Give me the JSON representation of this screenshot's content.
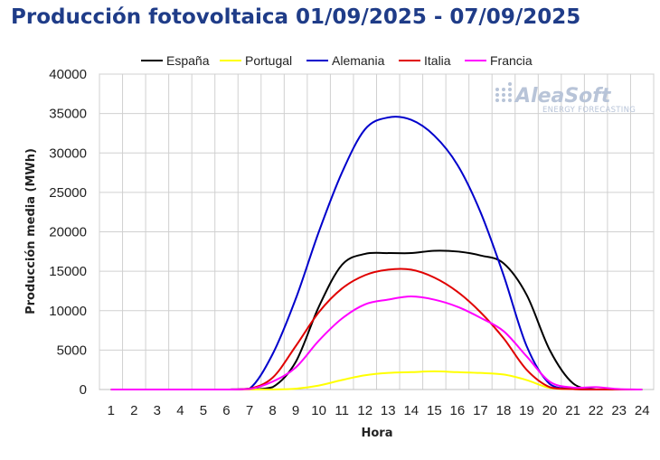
{
  "chart_data": {
    "type": "line",
    "title": "Producción fotovoltaica 01/09/2025 - 07/09/2025",
    "xlabel": "Hora",
    "ylabel": "Producción media (MWh)",
    "x": [
      1,
      2,
      3,
      4,
      5,
      6,
      7,
      8,
      9,
      10,
      11,
      12,
      13,
      14,
      15,
      16,
      17,
      18,
      19,
      20,
      21,
      22,
      23,
      24
    ],
    "xlim": [
      0.5,
      24.5
    ],
    "ylim": [
      0,
      40000
    ],
    "yticks": [
      0,
      5000,
      10000,
      15000,
      20000,
      25000,
      30000,
      35000,
      40000
    ],
    "grid": true,
    "legend_position": "top",
    "series": [
      {
        "name": "España",
        "color": "#000000",
        "values": [
          0,
          0,
          0,
          0,
          0,
          0,
          0,
          300,
          3500,
          10500,
          15800,
          17200,
          17300,
          17300,
          17600,
          17500,
          17000,
          16000,
          12000,
          5000,
          800,
          0,
          0,
          0
        ]
      },
      {
        "name": "Portugal",
        "color": "#ffff00",
        "values": [
          0,
          0,
          0,
          0,
          0,
          0,
          0,
          0,
          100,
          500,
          1200,
          1800,
          2100,
          2200,
          2300,
          2200,
          2100,
          1900,
          1200,
          200,
          50,
          0,
          0,
          0
        ]
      },
      {
        "name": "Alemania",
        "color": "#0000cc",
        "values": [
          0,
          0,
          0,
          0,
          0,
          0,
          100,
          4500,
          11500,
          20000,
          27500,
          33000,
          34500,
          34200,
          32200,
          28500,
          22500,
          14500,
          5500,
          700,
          100,
          0,
          0,
          0
        ]
      },
      {
        "name": "Italia",
        "color": "#e00000",
        "values": [
          0,
          0,
          0,
          0,
          0,
          0,
          100,
          1500,
          5500,
          9800,
          12800,
          14500,
          15200,
          15200,
          14200,
          12400,
          9800,
          6500,
          2500,
          300,
          50,
          0,
          0,
          0
        ]
      },
      {
        "name": "Francia",
        "color": "#ff00ff",
        "values": [
          0,
          0,
          0,
          0,
          0,
          0,
          50,
          1000,
          2800,
          6200,
          9000,
          10800,
          11400,
          11800,
          11400,
          10500,
          9100,
          7400,
          4200,
          1000,
          250,
          300,
          50,
          0
        ]
      }
    ]
  },
  "watermark": {
    "name": "AleaSoft",
    "tagline": "ENERGY FORECASTING",
    "color": "#b8c4d8"
  }
}
